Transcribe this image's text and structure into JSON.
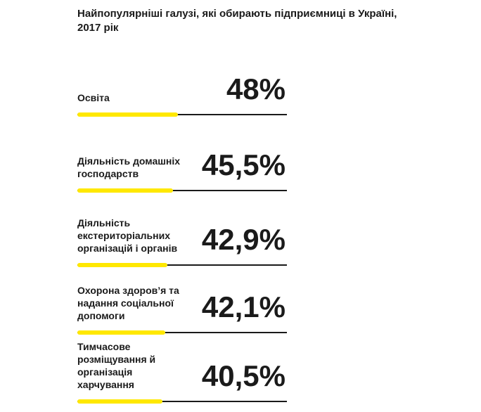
{
  "title": "Найпопулярніші галузі, які обирають підприємниці в Україні, 2017 рік",
  "colors": {
    "accent": "#ffe800",
    "line": "#1a1a1a"
  },
  "chart_data": {
    "type": "bar",
    "title": "Найпопулярніші галузі, які обирають підприємниці в Україні, 2017 рік",
    "categories": [
      "Освіта",
      "Діяльність домашніх господарств",
      "Діяльність екстериторіальних організацій і органів",
      "Охорона здоров’я та надання соціальної допомоги",
      "Тимчасове розміщування й організація харчування"
    ],
    "values": [
      48,
      45.5,
      42.9,
      42.1,
      40.5
    ],
    "value_labels": [
      "48%",
      "45,5%",
      "42,9%",
      "42,1%",
      "40,5%"
    ],
    "unit": "%",
    "xlim": [
      0,
      100
    ],
    "grid": false,
    "legend": "none"
  }
}
